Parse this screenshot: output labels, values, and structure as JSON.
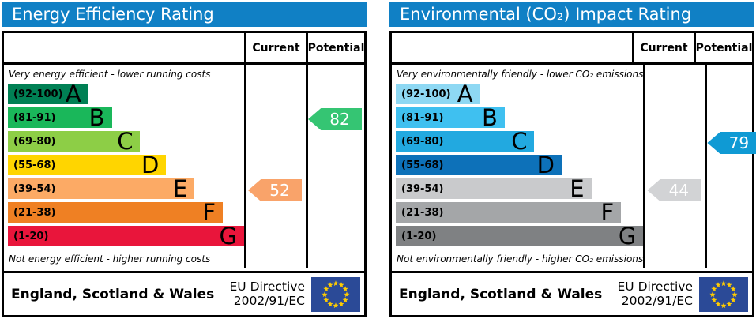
{
  "panels": [
    {
      "title": "Energy Efficiency Rating",
      "columns": {
        "current": "Current",
        "potential": "Potential"
      },
      "top_note": "Very energy efficient - lower running costs",
      "bottom_note": "Not energy efficient - higher running costs",
      "bands": [
        {
          "grade": "A",
          "range": "(92-100)",
          "color": "#008054",
          "width_pct": 34
        },
        {
          "grade": "B",
          "range": "(81-91)",
          "color": "#1ab75a",
          "width_pct": 44
        },
        {
          "grade": "C",
          "range": "(69-80)",
          "color": "#8dce46",
          "width_pct": 56
        },
        {
          "grade": "D",
          "range": "(55-68)",
          "color": "#ffd500",
          "width_pct": 67
        },
        {
          "grade": "E",
          "range": "(39-54)",
          "color": "#fcaa65",
          "width_pct": 79
        },
        {
          "grade": "F",
          "range": "(21-38)",
          "color": "#ef8023",
          "width_pct": 91
        },
        {
          "grade": "G",
          "range": "(1-20)",
          "color": "#e9153b",
          "width_pct": 100
        }
      ],
      "current": {
        "value": 52,
        "color": "#f9a36a",
        "band_index": 4
      },
      "potential": {
        "value": 82,
        "color": "#35c573",
        "band_index": 1
      },
      "footer": {
        "region": "England, Scotland & Wales",
        "directive_line1": "EU Directive",
        "directive_line2": "2002/91/EC"
      }
    },
    {
      "title": "Environmental (CO₂) Impact Rating",
      "columns": {
        "current": "Current",
        "potential": "Potential"
      },
      "top_note": "Very environmentally friendly - lower CO₂ emissions",
      "bottom_note": "Not environmentally friendly - higher CO₂ emissions",
      "bands": [
        {
          "grade": "A",
          "range": "(92-100)",
          "color": "#8ed8f3",
          "width_pct": 34
        },
        {
          "grade": "B",
          "range": "(81-91)",
          "color": "#3fc0f0",
          "width_pct": 44
        },
        {
          "grade": "C",
          "range": "(69-80)",
          "color": "#22a9e0",
          "width_pct": 56
        },
        {
          "grade": "D",
          "range": "(55-68)",
          "color": "#0d71b9",
          "width_pct": 67
        },
        {
          "grade": "E",
          "range": "(39-54)",
          "color": "#c9cacc",
          "width_pct": 79
        },
        {
          "grade": "F",
          "range": "(21-38)",
          "color": "#a4a6a8",
          "width_pct": 91
        },
        {
          "grade": "G",
          "range": "(1-20)",
          "color": "#7f8183",
          "width_pct": 100
        }
      ],
      "current": {
        "value": 44,
        "color": "#d2d3d5",
        "band_index": 4
      },
      "potential": {
        "value": 79,
        "color": "#0f9ad4",
        "band_index": 2
      },
      "footer": {
        "region": "England, Scotland & Wales",
        "directive_line1": "EU Directive",
        "directive_line2": "2002/91/EC"
      }
    }
  ],
  "colors": {
    "header_bar": "#1080c5",
    "eu_flag_blue": "#2b4a97",
    "eu_flag_star": "#ffcc00",
    "border": "#000000"
  },
  "chart_data": [
    {
      "type": "bar",
      "title": "Energy Efficiency Rating",
      "categories": [
        "A (92-100)",
        "B (81-91)",
        "C (69-80)",
        "D (55-68)",
        "E (39-54)",
        "F (21-38)",
        "G (1-20)"
      ],
      "series": [
        {
          "name": "Current",
          "values": [
            52
          ]
        },
        {
          "name": "Potential",
          "values": [
            82
          ]
        }
      ],
      "current_band": "E",
      "potential_band": "B",
      "top_note": "Very energy efficient - lower running costs",
      "bottom_note": "Not energy efficient - higher running costs",
      "footer": "England, Scotland & Wales — EU Directive 2002/91/EC",
      "value_range": [
        1,
        100
      ]
    },
    {
      "type": "bar",
      "title": "Environmental (CO₂) Impact Rating",
      "categories": [
        "A (92-100)",
        "B (81-91)",
        "C (69-80)",
        "D (55-68)",
        "E (39-54)",
        "F (21-38)",
        "G (1-20)"
      ],
      "series": [
        {
          "name": "Current",
          "values": [
            44
          ]
        },
        {
          "name": "Potential",
          "values": [
            79
          ]
        }
      ],
      "current_band": "E",
      "potential_band": "C",
      "top_note": "Very environmentally friendly - lower CO₂ emissions",
      "bottom_note": "Not environmentally friendly - higher CO₂ emissions",
      "footer": "England, Scotland & Wales — EU Directive 2002/91/EC",
      "value_range": [
        1,
        100
      ]
    }
  ]
}
